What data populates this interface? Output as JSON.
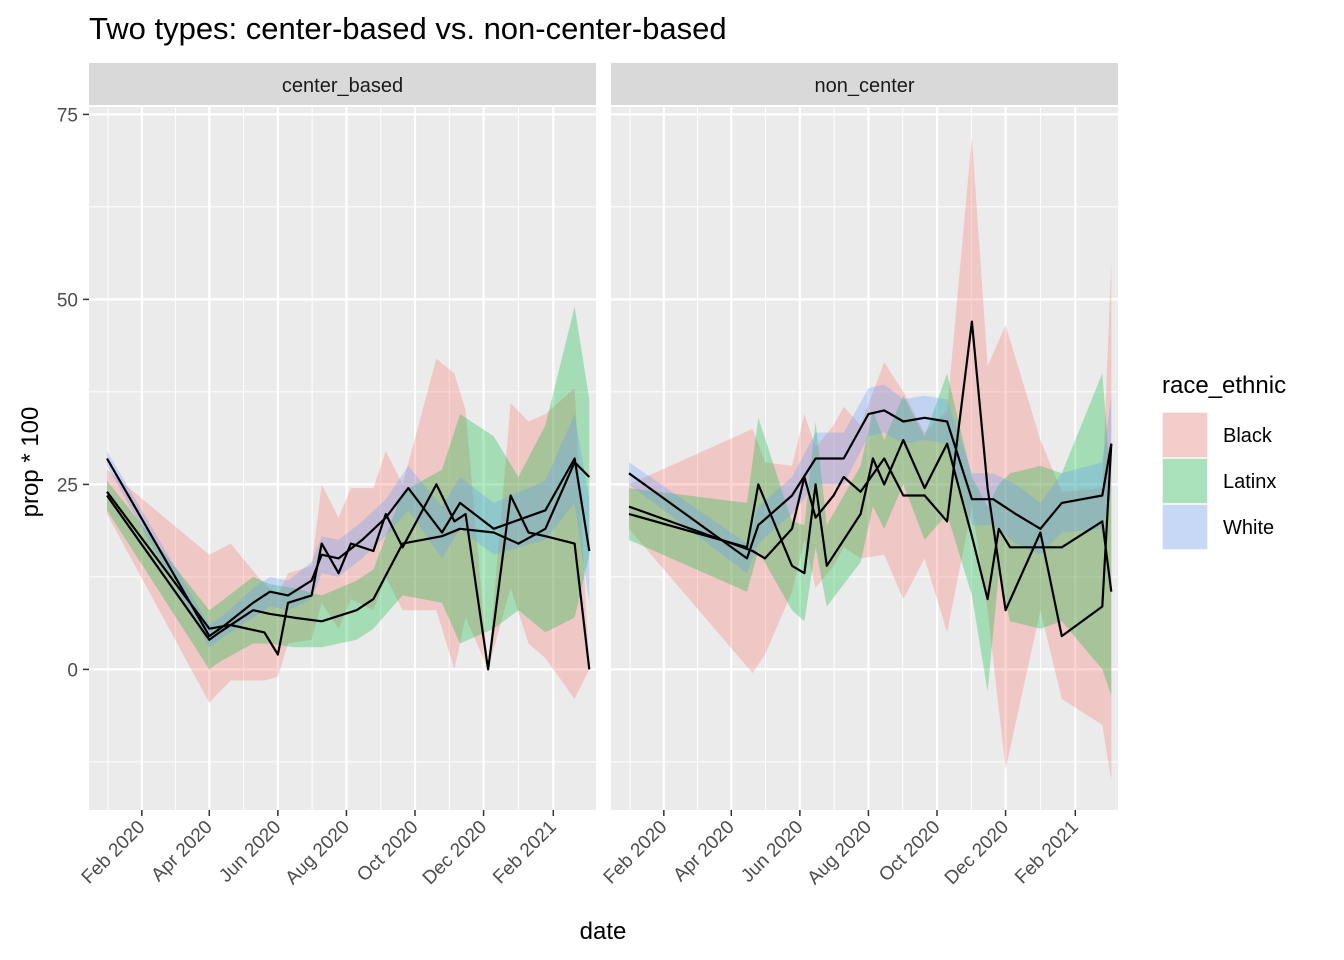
{
  "chart_data": {
    "type": "line",
    "title": "Two types: center-based vs. non-center-based",
    "xlabel": "date",
    "ylabel": "prop * 100",
    "xlim": [
      "2019-12-16",
      "2021-03-11"
    ],
    "ylim": [
      -19,
      76
    ],
    "y_ticks": [
      0,
      25,
      50,
      75
    ],
    "x_ticks": [
      {
        "date": "2020-02-01",
        "label": "Feb 2020"
      },
      {
        "date": "2020-04-01",
        "label": "Apr 2020"
      },
      {
        "date": "2020-06-01",
        "label": "Jun 2020"
      },
      {
        "date": "2020-08-01",
        "label": "Aug 2020"
      },
      {
        "date": "2020-10-01",
        "label": "Oct 2020"
      },
      {
        "date": "2020-12-01",
        "label": "Dec 2020"
      },
      {
        "date": "2021-02-01",
        "label": "Feb 2021"
      }
    ],
    "grid": true,
    "legend": {
      "title": "race_ethnic",
      "position": "right",
      "entries": [
        {
          "name": "Black",
          "color": "#F8766D"
        },
        {
          "name": "Latinx",
          "color": "#00BA38"
        },
        {
          "name": "White",
          "color": "#619CFF"
        }
      ]
    },
    "line_color": "#000000",
    "band_opacity": 0.3,
    "panels": [
      {
        "name": "center_based",
        "series": [
          {
            "name": "Black",
            "points": [
              {
                "date": "2020-01-01",
                "y": 24.0,
                "lo": 21.0,
                "hi": 27.0
              },
              {
                "date": "2020-04-01",
                "y": 5.5,
                "lo": -4.5,
                "hi": 15.5
              },
              {
                "date": "2020-04-20",
                "y": 6.0,
                "lo": -1.5,
                "hi": 17.0
              },
              {
                "date": "2020-05-20",
                "y": 5.0,
                "lo": -1.5,
                "hi": 11.5
              },
              {
                "date": "2020-06-01",
                "y": 2.0,
                "lo": -1.0,
                "hi": 10.0
              },
              {
                "date": "2020-06-10",
                "y": 9.0,
                "lo": 3.5,
                "hi": 13.0
              },
              {
                "date": "2020-07-01",
                "y": 10.0,
                "lo": 4.0,
                "hi": 14.0
              },
              {
                "date": "2020-07-10",
                "y": 17.0,
                "lo": 9.0,
                "hi": 25.0
              },
              {
                "date": "2020-07-25",
                "y": 13.0,
                "lo": 5.5,
                "hi": 20.5
              },
              {
                "date": "2020-08-05",
                "y": 17.0,
                "lo": 9.5,
                "hi": 24.5
              },
              {
                "date": "2020-08-25",
                "y": 16.0,
                "lo": 8.0,
                "hi": 24.5
              },
              {
                "date": "2020-09-05",
                "y": 21.0,
                "lo": 12.5,
                "hi": 29.5
              },
              {
                "date": "2020-09-20",
                "y": 16.5,
                "lo": 8.0,
                "hi": 25.0
              },
              {
                "date": "2020-10-20",
                "y": 25.0,
                "lo": 8.0,
                "hi": 42.0
              },
              {
                "date": "2020-11-05",
                "y": 20.0,
                "lo": 0.0,
                "hi": 40.0
              },
              {
                "date": "2020-11-15",
                "y": 21.0,
                "lo": 7.0,
                "hi": 35.0
              },
              {
                "date": "2020-12-05",
                "y": 0.0,
                "lo": 0.0,
                "hi": 0.0
              },
              {
                "date": "2020-12-25",
                "y": 23.5,
                "lo": 11.0,
                "hi": 36.0
              },
              {
                "date": "2021-01-10",
                "y": 18.5,
                "lo": 3.5,
                "hi": 33.5
              },
              {
                "date": "2021-01-25",
                "y": 18.0,
                "lo": 1.5,
                "hi": 34.5
              },
              {
                "date": "2021-02-20",
                "y": 17.0,
                "lo": -4.0,
                "hi": 38.0
              },
              {
                "date": "2021-03-05",
                "y": 0.0,
                "lo": 0.0,
                "hi": 0.0
              }
            ]
          },
          {
            "name": "Latinx",
            "points": [
              {
                "date": "2020-01-01",
                "y": 23.5,
                "lo": 21.5,
                "hi": 25.5
              },
              {
                "date": "2020-04-01",
                "y": 4.0,
                "lo": 0.0,
                "hi": 8.0
              },
              {
                "date": "2020-04-10",
                "y": 5.0,
                "lo": 1.0,
                "hi": 9.0
              },
              {
                "date": "2020-05-10",
                "y": 8.0,
                "lo": 3.5,
                "hi": 12.5
              },
              {
                "date": "2020-05-25",
                "y": 7.5,
                "lo": 3.5,
                "hi": 11.5
              },
              {
                "date": "2020-06-15",
                "y": 7.0,
                "lo": 3.0,
                "hi": 11.0
              },
              {
                "date": "2020-07-10",
                "y": 6.5,
                "lo": 3.0,
                "hi": 10.0
              },
              {
                "date": "2020-08-10",
                "y": 8.0,
                "lo": 4.0,
                "hi": 12.0
              },
              {
                "date": "2020-08-25",
                "y": 9.5,
                "lo": 5.5,
                "hi": 13.5
              },
              {
                "date": "2020-09-20",
                "y": 17.0,
                "lo": 10.0,
                "hi": 24.0
              },
              {
                "date": "2020-10-25",
                "y": 18.0,
                "lo": 9.0,
                "hi": 27.0
              },
              {
                "date": "2020-11-10",
                "y": 19.0,
                "lo": 3.5,
                "hi": 34.5
              },
              {
                "date": "2020-12-10",
                "y": 18.5,
                "lo": 5.5,
                "hi": 31.5
              },
              {
                "date": "2021-01-01",
                "y": 17.0,
                "lo": 8.0,
                "hi": 26.0
              },
              {
                "date": "2021-01-25",
                "y": 19.0,
                "lo": 5.0,
                "hi": 33.0
              },
              {
                "date": "2021-02-20",
                "y": 28.0,
                "lo": 7.0,
                "hi": 49.0
              },
              {
                "date": "2021-03-05",
                "y": 26.0,
                "lo": 15.5,
                "hi": 36.5
              }
            ]
          },
          {
            "name": "White",
            "points": [
              {
                "date": "2020-01-01",
                "y": 28.5,
                "lo": 27.5,
                "hi": 29.5
              },
              {
                "date": "2020-04-01",
                "y": 4.5,
                "lo": 3.0,
                "hi": 6.0
              },
              {
                "date": "2020-04-15",
                "y": 6.0,
                "lo": 4.5,
                "hi": 7.5
              },
              {
                "date": "2020-05-10",
                "y": 9.0,
                "lo": 7.0,
                "hi": 11.0
              },
              {
                "date": "2020-05-25",
                "y": 10.5,
                "lo": 8.5,
                "hi": 12.5
              },
              {
                "date": "2020-06-10",
                "y": 10.0,
                "lo": 8.0,
                "hi": 12.0
              },
              {
                "date": "2020-07-01",
                "y": 12.0,
                "lo": 9.5,
                "hi": 14.5
              },
              {
                "date": "2020-07-10",
                "y": 15.5,
                "lo": 13.0,
                "hi": 18.0
              },
              {
                "date": "2020-07-25",
                "y": 15.0,
                "lo": 12.5,
                "hi": 17.5
              },
              {
                "date": "2020-08-15",
                "y": 17.5,
                "lo": 15.0,
                "hi": 20.0
              },
              {
                "date": "2020-09-05",
                "y": 20.5,
                "lo": 18.0,
                "hi": 23.0
              },
              {
                "date": "2020-09-25",
                "y": 24.5,
                "lo": 21.5,
                "hi": 27.5
              },
              {
                "date": "2020-10-25",
                "y": 18.5,
                "lo": 15.0,
                "hi": 22.0
              },
              {
                "date": "2020-11-10",
                "y": 22.5,
                "lo": 19.0,
                "hi": 26.0
              },
              {
                "date": "2020-12-10",
                "y": 19.0,
                "lo": 15.5,
                "hi": 22.5
              },
              {
                "date": "2021-01-25",
                "y": 21.5,
                "lo": 17.5,
                "hi": 25.5
              },
              {
                "date": "2021-02-20",
                "y": 28.5,
                "lo": 22.5,
                "hi": 34.5
              },
              {
                "date": "2021-03-05",
                "y": 16.0,
                "lo": 9.0,
                "hi": 23.0
              }
            ]
          }
        ]
      },
      {
        "name": "non_center",
        "series": [
          {
            "name": "Black",
            "points": [
              {
                "date": "2020-01-01",
                "y": 22.0,
                "lo": 19.0,
                "hi": 25.0
              },
              {
                "date": "2020-04-20",
                "y": 16.0,
                "lo": -0.5,
                "hi": 32.5
              },
              {
                "date": "2020-05-01",
                "y": 15.0,
                "lo": 2.0,
                "hi": 28.0
              },
              {
                "date": "2020-05-25",
                "y": 19.0,
                "lo": 10.5,
                "hi": 27.5
              },
              {
                "date": "2020-06-05",
                "y": 26.0,
                "lo": 17.5,
                "hi": 34.5
              },
              {
                "date": "2020-06-15",
                "y": 20.5,
                "lo": 11.0,
                "hi": 30.0
              },
              {
                "date": "2020-07-01",
                "y": 23.5,
                "lo": 14.0,
                "hi": 33.0
              },
              {
                "date": "2020-07-10",
                "y": 26.0,
                "lo": 16.5,
                "hi": 35.5
              },
              {
                "date": "2020-07-25",
                "y": 24.0,
                "lo": 15.0,
                "hi": 33.0
              },
              {
                "date": "2020-08-15",
                "y": 28.5,
                "lo": 15.5,
                "hi": 41.5
              },
              {
                "date": "2020-09-01",
                "y": 23.5,
                "lo": 9.5,
                "hi": 37.5
              },
              {
                "date": "2020-09-20",
                "y": 23.5,
                "lo": 15.0,
                "hi": 32.0
              },
              {
                "date": "2020-10-10",
                "y": 20.0,
                "lo": 5.0,
                "hi": 35.0
              },
              {
                "date": "2020-11-01",
                "y": 47.0,
                "lo": 22.0,
                "hi": 72.0
              },
              {
                "date": "2020-11-15",
                "y": 24.5,
                "lo": 8.0,
                "hi": 41.0
              },
              {
                "date": "2020-12-01",
                "y": 8.0,
                "lo": -13.5,
                "hi": 46.5
              },
              {
                "date": "2021-01-01",
                "y": 18.5,
                "lo": 8.0,
                "hi": 31.0
              },
              {
                "date": "2021-01-20",
                "y": 4.5,
                "lo": -4.0,
                "hi": 24.0
              },
              {
                "date": "2021-02-25",
                "y": 8.5,
                "lo": -7.5,
                "hi": 24.5
              },
              {
                "date": "2021-03-05",
                "y": 30.5,
                "lo": -15.0,
                "hi": 55.0
              }
            ]
          },
          {
            "name": "Latinx",
            "points": [
              {
                "date": "2020-01-01",
                "y": 21.0,
                "lo": 17.5,
                "hi": 24.5
              },
              {
                "date": "2020-04-15",
                "y": 16.5,
                "lo": 10.5,
                "hi": 22.5
              },
              {
                "date": "2020-04-25",
                "y": 25.0,
                "lo": 16.0,
                "hi": 34.0
              },
              {
                "date": "2020-05-25",
                "y": 14.0,
                "lo": 8.0,
                "hi": 20.0
              },
              {
                "date": "2020-06-05",
                "y": 13.0,
                "lo": 6.5,
                "hi": 19.5
              },
              {
                "date": "2020-06-15",
                "y": 25.0,
                "lo": 16.5,
                "hi": 33.5
              },
              {
                "date": "2020-06-25",
                "y": 14.0,
                "lo": 8.5,
                "hi": 19.5
              },
              {
                "date": "2020-07-25",
                "y": 21.0,
                "lo": 14.5,
                "hi": 27.5
              },
              {
                "date": "2020-08-05",
                "y": 28.5,
                "lo": 22.0,
                "hi": 35.0
              },
              {
                "date": "2020-08-15",
                "y": 25.0,
                "lo": 19.0,
                "hi": 31.0
              },
              {
                "date": "2020-09-01",
                "y": 31.0,
                "lo": 25.0,
                "hi": 37.0
              },
              {
                "date": "2020-09-20",
                "y": 24.5,
                "lo": 17.5,
                "hi": 31.5
              },
              {
                "date": "2020-10-10",
                "y": 30.5,
                "lo": 21.0,
                "hi": 40.0
              },
              {
                "date": "2020-11-01",
                "y": 18.0,
                "lo": 10.0,
                "hi": 26.0
              },
              {
                "date": "2020-11-15",
                "y": 9.5,
                "lo": -3.0,
                "hi": 22.0
              },
              {
                "date": "2020-11-25",
                "y": 19.0,
                "lo": 13.0,
                "hi": 25.0
              },
              {
                "date": "2020-12-05",
                "y": 16.5,
                "lo": 6.5,
                "hi": 26.5
              },
              {
                "date": "2021-01-01",
                "y": 16.5,
                "lo": 5.5,
                "hi": 27.5
              },
              {
                "date": "2021-01-20",
                "y": 16.5,
                "lo": 6.5,
                "hi": 26.5
              },
              {
                "date": "2021-02-25",
                "y": 20.0,
                "lo": 0.0,
                "hi": 40.0
              },
              {
                "date": "2021-03-05",
                "y": 10.5,
                "lo": -3.5,
                "hi": 24.5
              }
            ]
          },
          {
            "name": "White",
            "points": [
              {
                "date": "2020-01-01",
                "y": 26.5,
                "lo": 25.0,
                "hi": 28.0
              },
              {
                "date": "2020-04-15",
                "y": 15.0,
                "lo": 13.0,
                "hi": 17.0
              },
              {
                "date": "2020-04-25",
                "y": 19.5,
                "lo": 17.0,
                "hi": 22.0
              },
              {
                "date": "2020-05-25",
                "y": 23.5,
                "lo": 21.0,
                "hi": 26.0
              },
              {
                "date": "2020-06-15",
                "y": 28.5,
                "lo": 25.0,
                "hi": 32.0
              },
              {
                "date": "2020-07-10",
                "y": 28.5,
                "lo": 25.0,
                "hi": 32.0
              },
              {
                "date": "2020-08-01",
                "y": 34.5,
                "lo": 31.5,
                "hi": 38.0
              },
              {
                "date": "2020-08-15",
                "y": 35.0,
                "lo": 32.0,
                "hi": 38.5
              },
              {
                "date": "2020-09-01",
                "y": 33.5,
                "lo": 30.5,
                "hi": 36.5
              },
              {
                "date": "2020-09-20",
                "y": 34.0,
                "lo": 31.0,
                "hi": 37.0
              },
              {
                "date": "2020-10-10",
                "y": 33.5,
                "lo": 30.5,
                "hi": 36.5
              },
              {
                "date": "2020-11-01",
                "y": 23.0,
                "lo": 19.5,
                "hi": 26.5
              },
              {
                "date": "2020-11-20",
                "y": 23.0,
                "lo": 19.5,
                "hi": 26.5
              },
              {
                "date": "2020-12-10",
                "y": 21.0,
                "lo": 17.0,
                "hi": 25.0
              },
              {
                "date": "2021-01-01",
                "y": 19.0,
                "lo": 15.5,
                "hi": 22.5
              },
              {
                "date": "2021-01-20",
                "y": 22.5,
                "lo": 18.5,
                "hi": 26.5
              },
              {
                "date": "2021-02-25",
                "y": 23.5,
                "lo": 19.0,
                "hi": 28.0
              },
              {
                "date": "2021-03-05",
                "y": 30.5,
                "lo": 24.0,
                "hi": 37.0
              }
            ]
          }
        ]
      }
    ]
  }
}
